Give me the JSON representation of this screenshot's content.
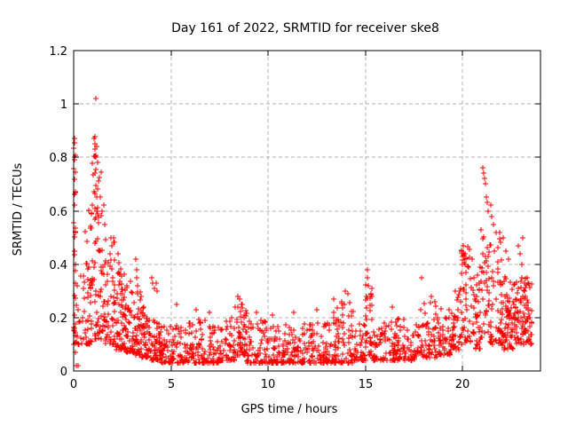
{
  "chart_data": {
    "type": "scatter",
    "title": "Day 161 of 2022, SRMTID for receiver ske8",
    "xlabel": "GPS time / hours",
    "ylabel": "SRMTID / TECUs",
    "xlim": [
      0,
      24
    ],
    "ylim": [
      0,
      1.2
    ],
    "xticks": [
      0,
      5,
      10,
      15,
      20
    ],
    "xtick_labels": [
      "0",
      "5",
      "10",
      "15",
      "20"
    ],
    "yticks": [
      0,
      0.2,
      0.4,
      0.6,
      0.8,
      1.0,
      1.2
    ],
    "ytick_labels": [
      "0",
      "0.2",
      "0.4",
      "0.6",
      "0.8",
      "1",
      "1.2"
    ],
    "grid": true,
    "grid_color": "#b0b0b0",
    "border_color": "#000000",
    "marker": "plus",
    "marker_color": "#ff0000",
    "marker_size": 7,
    "legend": "none",
    "seed": 161,
    "description": "Dense scatter of SRMTID values vs GPS time. Quiet band ~0.05-0.2 TECUs through midday; strong enhancement 0-2.5 h (up to 1.02), spikes near 20.1 h (~0.47) and 21-22 h (~0.76), elevated scatter 22.6-23.5 h.",
    "clusters": [
      {
        "x0": 0.0,
        "x1": 0.1,
        "n": 28,
        "ymin": 0.05,
        "ymax": 0.88,
        "skew": 1.5
      },
      {
        "x0": 0.1,
        "x1": 0.6,
        "n": 22,
        "ymin": 0.1,
        "ymax": 0.45,
        "skew": 1.5
      },
      {
        "x0": 0.6,
        "x1": 0.95,
        "n": 42,
        "ymin": 0.1,
        "ymax": 0.62,
        "skew": 1.8
      },
      {
        "x0": 0.95,
        "x1": 1.45,
        "n": 65,
        "ymin": 0.12,
        "ymax": 0.88,
        "skew": 1.7
      },
      {
        "x0": 1.45,
        "x1": 2.1,
        "n": 65,
        "ymin": 0.1,
        "ymax": 0.52,
        "skew": 1.6
      },
      {
        "x0": 2.1,
        "x1": 2.6,
        "n": 55,
        "ymin": 0.08,
        "ymax": 0.42,
        "skew": 1.7
      },
      {
        "x0": 2.6,
        "x1": 3.1,
        "n": 50,
        "ymin": 0.07,
        "ymax": 0.34,
        "skew": 1.8
      },
      {
        "x0": 3.1,
        "x1": 3.45,
        "n": 42,
        "ymin": 0.06,
        "ymax": 0.3,
        "skew": 1.9
      },
      {
        "x0": 3.45,
        "x1": 4.0,
        "n": 55,
        "ymin": 0.05,
        "ymax": 0.24,
        "skew": 2.0
      },
      {
        "x0": 4.0,
        "x1": 4.5,
        "n": 50,
        "ymin": 0.04,
        "ymax": 0.2,
        "skew": 2.0
      },
      {
        "x0": 4.5,
        "x1": 5.5,
        "n": 65,
        "ymin": 0.03,
        "ymax": 0.2,
        "skew": 2.2
      },
      {
        "x0": 5.5,
        "x1": 6.5,
        "n": 65,
        "ymin": 0.03,
        "ymax": 0.2,
        "skew": 2.2
      },
      {
        "x0": 6.5,
        "x1": 7.5,
        "n": 65,
        "ymin": 0.03,
        "ymax": 0.19,
        "skew": 2.2
      },
      {
        "x0": 7.5,
        "x1": 8.3,
        "n": 55,
        "ymin": 0.04,
        "ymax": 0.2,
        "skew": 2.2
      },
      {
        "x0": 8.3,
        "x1": 8.9,
        "n": 50,
        "ymin": 0.06,
        "ymax": 0.26,
        "skew": 1.7
      },
      {
        "x0": 8.9,
        "x1": 10.0,
        "n": 70,
        "ymin": 0.03,
        "ymax": 0.19,
        "skew": 2.2
      },
      {
        "x0": 10.0,
        "x1": 11.0,
        "n": 65,
        "ymin": 0.03,
        "ymax": 0.18,
        "skew": 2.2
      },
      {
        "x0": 11.0,
        "x1": 12.0,
        "n": 65,
        "ymin": 0.03,
        "ymax": 0.18,
        "skew": 2.2
      },
      {
        "x0": 12.0,
        "x1": 13.0,
        "n": 65,
        "ymin": 0.03,
        "ymax": 0.2,
        "skew": 2.2
      },
      {
        "x0": 13.0,
        "x1": 13.6,
        "n": 45,
        "ymin": 0.03,
        "ymax": 0.24,
        "skew": 2.0
      },
      {
        "x0": 13.6,
        "x1": 14.4,
        "n": 55,
        "ymin": 0.03,
        "ymax": 0.26,
        "skew": 2.0
      },
      {
        "x0": 14.4,
        "x1": 15.0,
        "n": 40,
        "ymin": 0.04,
        "ymax": 0.2,
        "skew": 2.2
      },
      {
        "x0": 15.0,
        "x1": 15.35,
        "n": 30,
        "ymin": 0.06,
        "ymax": 0.34,
        "skew": 1.8
      },
      {
        "x0": 15.35,
        "x1": 16.5,
        "n": 70,
        "ymin": 0.04,
        "ymax": 0.19,
        "skew": 2.2
      },
      {
        "x0": 16.5,
        "x1": 17.8,
        "n": 80,
        "ymin": 0.04,
        "ymax": 0.2,
        "skew": 2.2
      },
      {
        "x0": 17.8,
        "x1": 18.8,
        "n": 65,
        "ymin": 0.05,
        "ymax": 0.26,
        "skew": 2.0
      },
      {
        "x0": 18.8,
        "x1": 19.4,
        "n": 45,
        "ymin": 0.06,
        "ymax": 0.24,
        "skew": 2.0
      },
      {
        "x0": 19.4,
        "x1": 19.85,
        "n": 35,
        "ymin": 0.08,
        "ymax": 0.3,
        "skew": 1.8
      },
      {
        "x0": 19.85,
        "x1": 20.35,
        "n": 45,
        "ymin": 0.1,
        "ymax": 0.47,
        "skew": 1.4
      },
      {
        "x0": 20.35,
        "x1": 20.9,
        "n": 45,
        "ymin": 0.08,
        "ymax": 0.36,
        "skew": 1.6
      },
      {
        "x0": 20.9,
        "x1": 21.35,
        "n": 40,
        "ymin": 0.12,
        "ymax": 0.56,
        "skew": 1.5
      },
      {
        "x0": 21.35,
        "x1": 22.0,
        "n": 55,
        "ymin": 0.1,
        "ymax": 0.5,
        "skew": 1.7
      },
      {
        "x0": 22.0,
        "x1": 22.6,
        "n": 70,
        "ymin": 0.08,
        "ymax": 0.36,
        "skew": 1.6
      },
      {
        "x0": 22.6,
        "x1": 23.55,
        "n": 100,
        "ymin": 0.1,
        "ymax": 0.35,
        "skew": 1.4
      }
    ],
    "outliers": [
      [
        0.03,
        0.87
      ],
      [
        0.04,
        0.8
      ],
      [
        0.05,
        0.8
      ],
      [
        0.03,
        0.79
      ],
      [
        0.06,
        0.66
      ],
      [
        0.04,
        0.62
      ],
      [
        0.05,
        0.45
      ],
      [
        0.08,
        0.4
      ],
      [
        0.15,
        0.02
      ],
      [
        0.22,
        0.02
      ],
      [
        1.13,
        1.02
      ],
      [
        1.05,
        0.87
      ],
      [
        1.2,
        0.84
      ],
      [
        1.15,
        0.8
      ],
      [
        1.25,
        0.78
      ],
      [
        1.1,
        0.74
      ],
      [
        1.3,
        0.71
      ],
      [
        1.22,
        0.68
      ],
      [
        1.35,
        0.65
      ],
      [
        0.98,
        0.62
      ],
      [
        1.45,
        0.6
      ],
      [
        1.55,
        0.62
      ],
      [
        1.6,
        0.55
      ],
      [
        1.95,
        0.47
      ],
      [
        2.3,
        0.44
      ],
      [
        3.18,
        0.42
      ],
      [
        3.22,
        0.38
      ],
      [
        3.25,
        0.35
      ],
      [
        3.3,
        0.32
      ],
      [
        4.0,
        0.35
      ],
      [
        4.07,
        0.33
      ],
      [
        4.15,
        0.31
      ],
      [
        4.25,
        0.33
      ],
      [
        4.28,
        0.3
      ],
      [
        5.3,
        0.25
      ],
      [
        6.3,
        0.23
      ],
      [
        7.0,
        0.22
      ],
      [
        8.45,
        0.28
      ],
      [
        8.55,
        0.27
      ],
      [
        8.65,
        0.25
      ],
      [
        9.4,
        0.22
      ],
      [
        10.2,
        0.21
      ],
      [
        11.3,
        0.22
      ],
      [
        12.5,
        0.23
      ],
      [
        13.35,
        0.27
      ],
      [
        13.95,
        0.3
      ],
      [
        14.1,
        0.29
      ],
      [
        15.05,
        0.28
      ],
      [
        15.1,
        0.38
      ],
      [
        15.12,
        0.35
      ],
      [
        15.15,
        0.32
      ],
      [
        16.4,
        0.24
      ],
      [
        17.9,
        0.35
      ],
      [
        18.4,
        0.28
      ],
      [
        18.55,
        0.26
      ],
      [
        19.95,
        0.45
      ],
      [
        20.05,
        0.47
      ],
      [
        20.1,
        0.44
      ],
      [
        20.15,
        0.42
      ],
      [
        20.5,
        0.42
      ],
      [
        21.05,
        0.76
      ],
      [
        21.1,
        0.74
      ],
      [
        21.12,
        0.72
      ],
      [
        21.15,
        0.7
      ],
      [
        21.2,
        0.65
      ],
      [
        21.25,
        0.63
      ],
      [
        21.3,
        0.6
      ],
      [
        21.45,
        0.62
      ],
      [
        21.5,
        0.58
      ],
      [
        21.6,
        0.55
      ],
      [
        21.7,
        0.52
      ],
      [
        21.9,
        0.52
      ],
      [
        22.1,
        0.5
      ],
      [
        22.2,
        0.45
      ],
      [
        22.35,
        0.42
      ],
      [
        22.85,
        0.47
      ],
      [
        22.95,
        0.44
      ],
      [
        23.05,
        0.4
      ],
      [
        23.1,
        0.5
      ],
      [
        23.35,
        0.33
      ]
    ]
  }
}
